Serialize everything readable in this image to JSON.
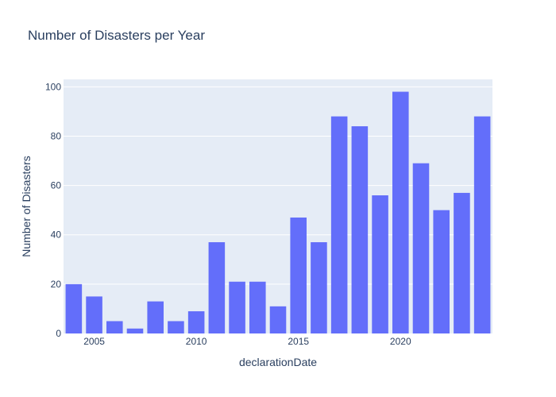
{
  "chart_data": {
    "type": "bar",
    "title": "Number of Disasters per Year",
    "xlabel": "declarationDate",
    "ylabel": "Number of Disasters",
    "categories": [
      2004,
      2005,
      2006,
      2007,
      2008,
      2009,
      2010,
      2011,
      2012,
      2013,
      2014,
      2015,
      2016,
      2017,
      2018,
      2019,
      2020,
      2021,
      2022,
      2023,
      2024
    ],
    "values": [
      20,
      15,
      5,
      2,
      13,
      5,
      9,
      37,
      21,
      21,
      11,
      47,
      37,
      88,
      84,
      56,
      98,
      69,
      50,
      57,
      88
    ],
    "xlim": [
      2003.5,
      2024.5
    ],
    "ylim": [
      0,
      103
    ],
    "x_ticks": [
      2005,
      2010,
      2015,
      2020
    ],
    "x_tick_labels": [
      "2005",
      "2010",
      "2015",
      "2020"
    ],
    "y_ticks": [
      0,
      20,
      40,
      60,
      80,
      100
    ],
    "y_tick_labels": [
      "0",
      "20",
      "40",
      "60",
      "80",
      "100"
    ],
    "grid": true,
    "legend": "none",
    "colors": {
      "bar": "#636efa",
      "plot_background": "#e5ecf6",
      "gridline": "#ffffff",
      "text": "#2a3f5f"
    }
  }
}
